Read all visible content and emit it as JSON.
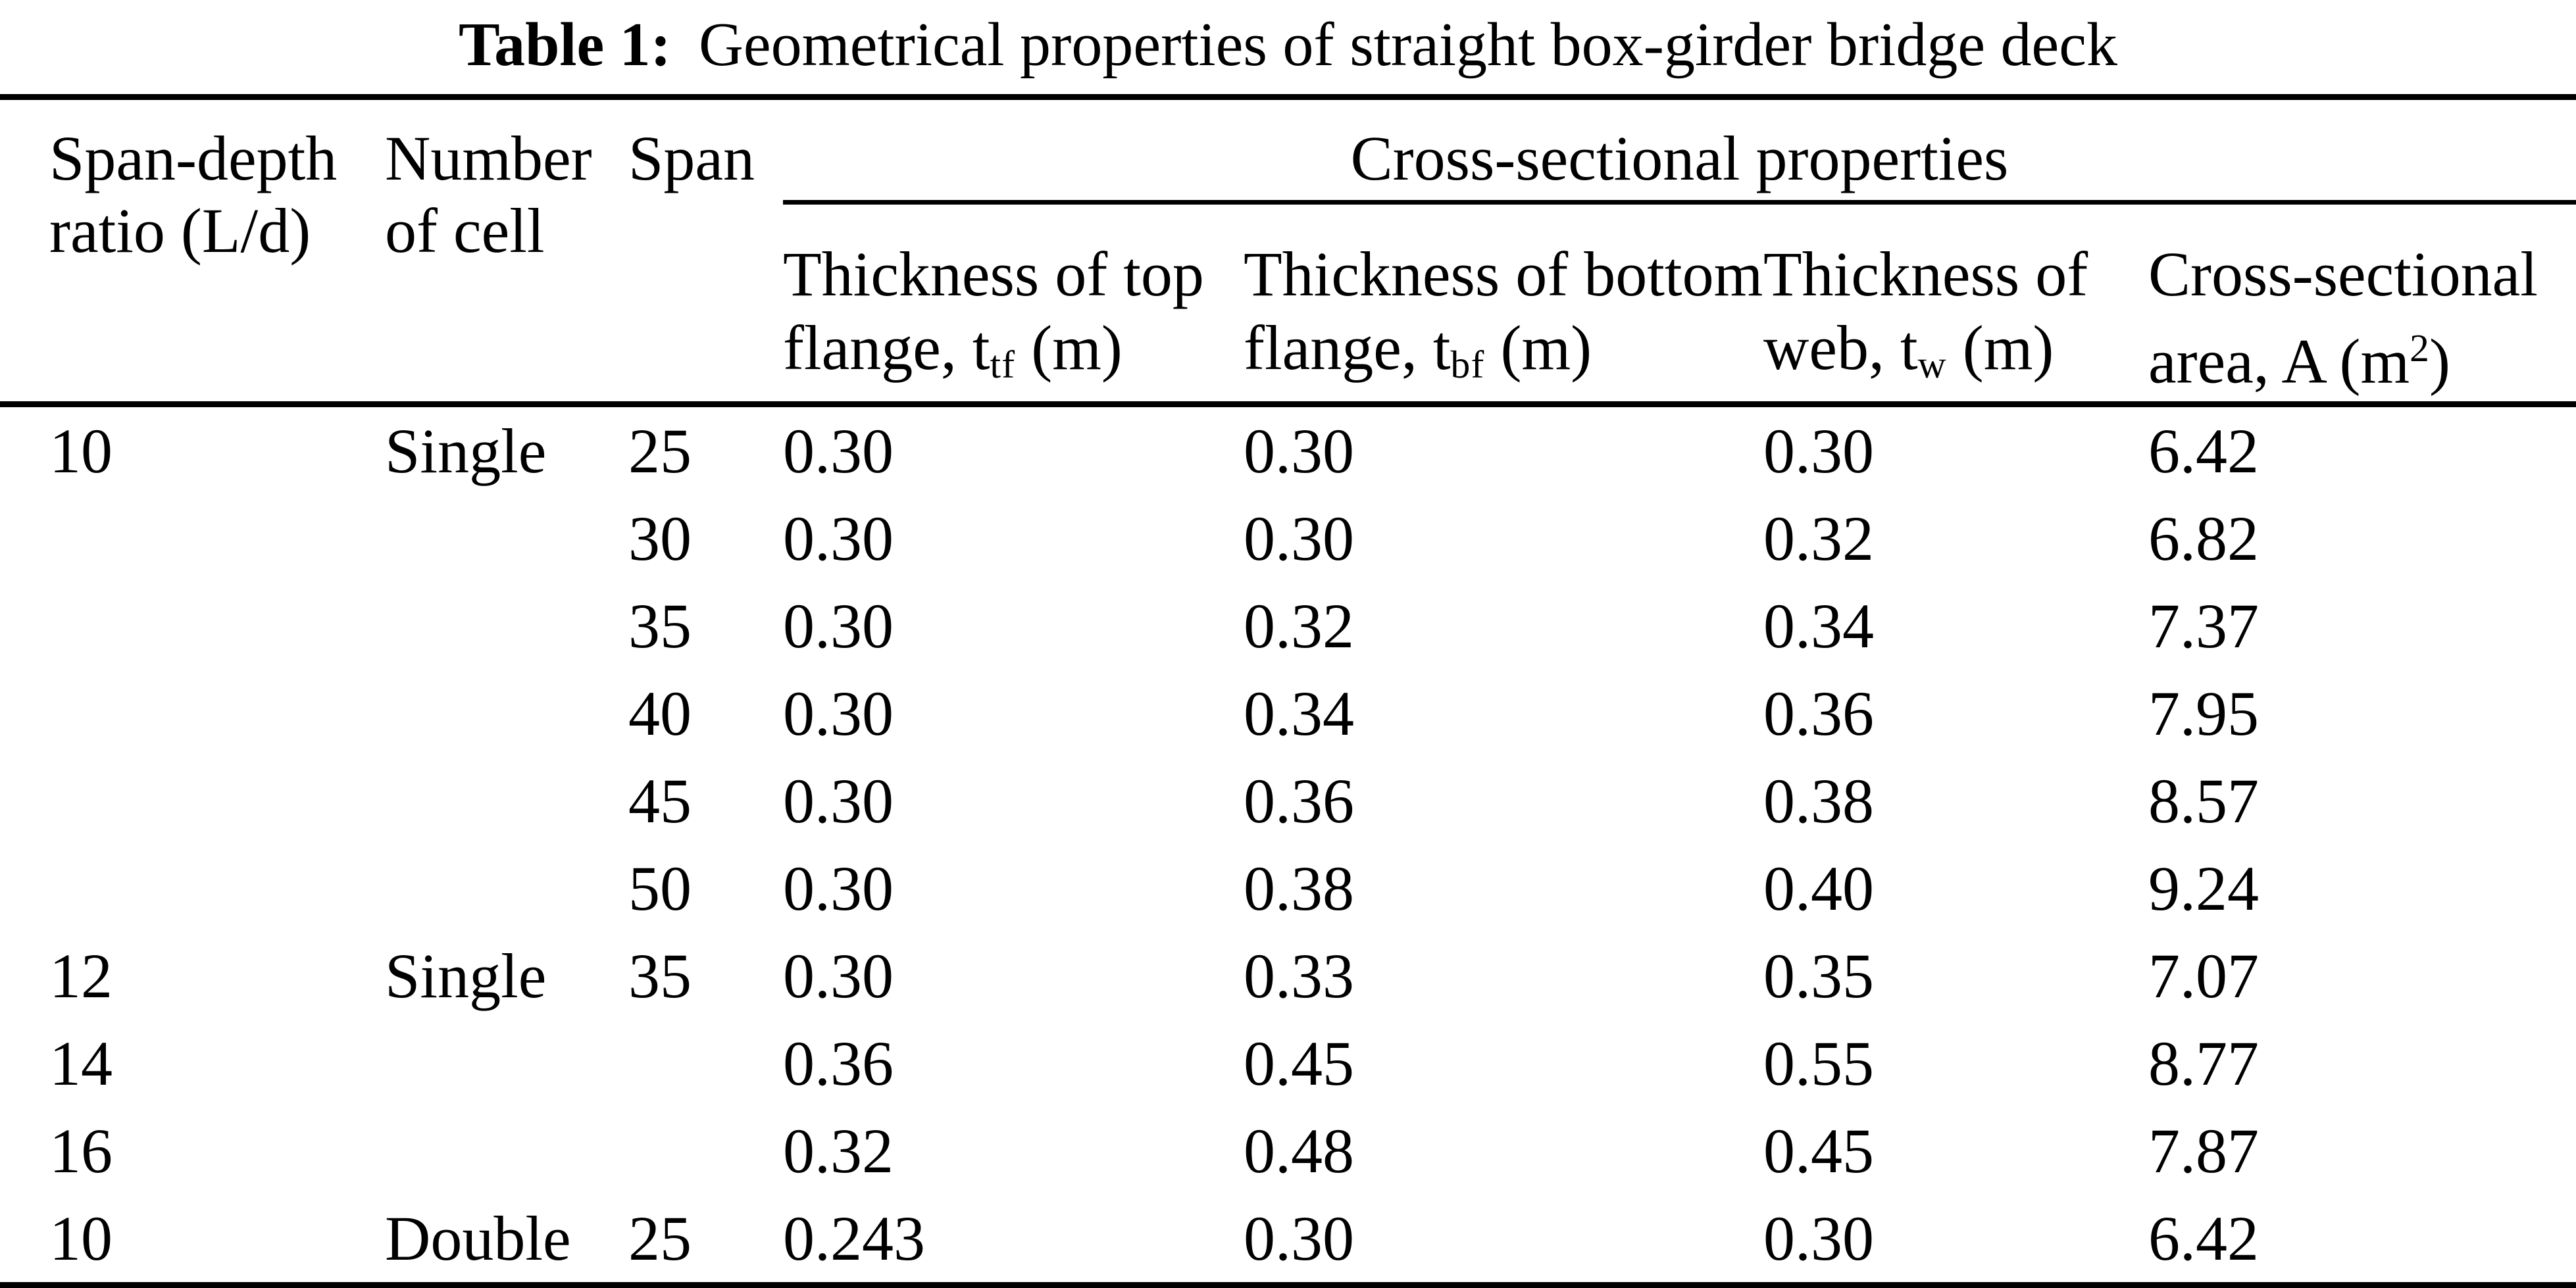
{
  "title": {
    "prefix": "Table 1:",
    "text": "Geometrical properties of straight box-girder bridge deck"
  },
  "colors": {
    "text": "#000000",
    "background": "#ffffff",
    "rule": "#000000"
  },
  "table": {
    "group_header": "Cross-sectional properties",
    "columns": [
      {
        "lines": [
          "Span-depth",
          "ratio (L/d)"
        ]
      },
      {
        "lines": [
          "Number",
          "of cell"
        ]
      },
      {
        "lines": [
          "Span"
        ]
      }
    ],
    "subcolumns": [
      {
        "line1": "Thickness of top",
        "pre": "flange, t",
        "sub": "tf",
        "post": " (m)"
      },
      {
        "line1": "Thickness of bottom",
        "pre": "flange, t",
        "sub": "bf",
        "post": " (m)"
      },
      {
        "line1": "Thickness of",
        "pre": "web, t",
        "sub": "w",
        "post": " (m)"
      },
      {
        "line1": "Cross-sectional",
        "pre": "area, A (m",
        "sup": "2",
        "post": ")"
      }
    ],
    "rows": [
      [
        "10",
        "Single",
        "25",
        "0.30",
        "0.30",
        "0.30",
        "6.42"
      ],
      [
        "",
        "",
        "30",
        "0.30",
        "0.30",
        "0.32",
        "6.82"
      ],
      [
        "",
        "",
        "35",
        "0.30",
        "0.32",
        "0.34",
        "7.37"
      ],
      [
        "",
        "",
        "40",
        "0.30",
        "0.34",
        "0.36",
        "7.95"
      ],
      [
        "",
        "",
        "45",
        "0.30",
        "0.36",
        "0.38",
        "8.57"
      ],
      [
        "",
        "",
        "50",
        "0.30",
        "0.38",
        "0.40",
        "9.24"
      ],
      [
        "12",
        "Single",
        "35",
        "0.30",
        "0.33",
        "0.35",
        "7.07"
      ],
      [
        "14",
        "",
        "",
        "0.36",
        "0.45",
        "0.55",
        "8.77"
      ],
      [
        "16",
        "",
        "",
        "0.32",
        "0.48",
        "0.45",
        "7.87"
      ],
      [
        "10",
        "Double",
        "25",
        "0.243",
        "0.30",
        "0.30",
        "6.42"
      ]
    ]
  }
}
